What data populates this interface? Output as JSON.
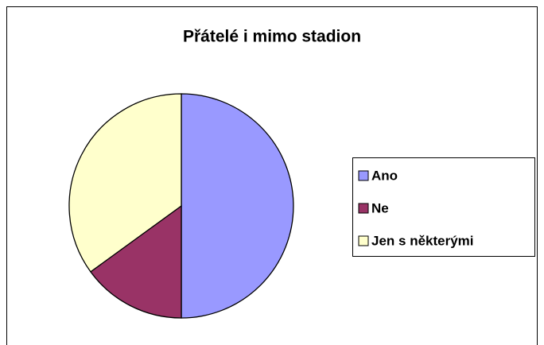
{
  "chart_data": {
    "type": "pie",
    "title": "Přátelé i mimo stadion",
    "categories": [
      "Ano",
      "Ne",
      "Jen s některými"
    ],
    "values": [
      50,
      15,
      35
    ],
    "colors": [
      "#9999ff",
      "#993366",
      "#ffffcc"
    ],
    "legend": "right"
  }
}
